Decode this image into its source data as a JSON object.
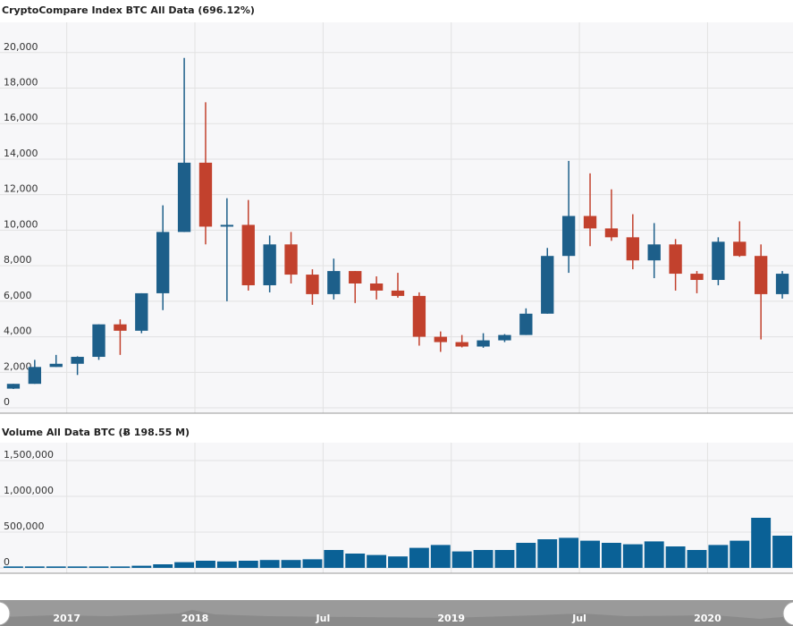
{
  "chart_data": [
    {
      "type": "candlestick",
      "title": "CryptoCompare Index BTC All Data (696.12%)",
      "x": [
        "2017-04",
        "2017-05",
        "2017-06",
        "2017-07",
        "2017-08",
        "2017-09",
        "2017-10",
        "2017-11",
        "2017-12",
        "2018-01",
        "2018-02",
        "2018-03",
        "2018-04",
        "2018-05",
        "2018-06",
        "2018-07",
        "2018-08",
        "2018-09",
        "2018-10",
        "2018-11",
        "2018-12",
        "2019-01",
        "2019-02",
        "2019-03",
        "2019-04",
        "2019-05",
        "2019-06",
        "2019-07",
        "2019-08",
        "2019-09",
        "2019-10",
        "2019-11",
        "2019-12",
        "2020-01",
        "2020-02",
        "2020-03",
        "2020-04"
      ],
      "open": [
        1080,
        1350,
        2300,
        2480,
        2870,
        4700,
        4340,
        6450,
        9900,
        13800,
        10200,
        10300,
        6900,
        9200,
        7500,
        6400,
        7700,
        7000,
        6600,
        6300,
        4000,
        3700,
        3450,
        3800,
        4100,
        5300,
        8550,
        10800,
        10100,
        9600,
        8300,
        9200,
        7550,
        7200,
        9350,
        8550,
        6400
      ],
      "high": [
        1350,
        2700,
        2980,
        2900,
        4700,
        4980,
        6450,
        11400,
        19700,
        17200,
        11800,
        11700,
        9700,
        9900,
        7800,
        8400,
        7700,
        7400,
        7600,
        6500,
        4300,
        4100,
        4200,
        4150,
        5600,
        9000,
        13900,
        13200,
        12300,
        10900,
        10400,
        9500,
        7700,
        9600,
        10500,
        9200,
        7700
      ],
      "low": [
        1060,
        1350,
        2300,
        1850,
        2700,
        2980,
        4200,
        5500,
        9900,
        9200,
        6000,
        6600,
        6500,
        7000,
        5800,
        6100,
        5900,
        6100,
        6200,
        3500,
        3150,
        3400,
        3380,
        3700,
        4100,
        5300,
        7600,
        9100,
        9400,
        7800,
        7300,
        6600,
        6450,
        6900,
        8500,
        3850,
        6150
      ],
      "close": [
        1350,
        2300,
        2480,
        2870,
        4700,
        4340,
        6450,
        9900,
        13800,
        10200,
        10300,
        6900,
        9200,
        7500,
        6400,
        7700,
        7000,
        6600,
        6300,
        4000,
        3700,
        3450,
        3800,
        4100,
        5300,
        8550,
        10800,
        10100,
        9600,
        8300,
        9200,
        7550,
        7200,
        9350,
        8550,
        6400,
        7550
      ],
      "up_color": "#1d5f8a",
      "down_color": "#c2412d",
      "xlim": [
        "2017-04",
        "2020-05"
      ],
      "xticks": [
        {
          "value": "2017-07",
          "label": "2017"
        },
        {
          "value": "2018-01",
          "label": "2018"
        },
        {
          "value": "2018-07",
          "label": "Jul"
        },
        {
          "value": "2019-01",
          "label": "2019"
        },
        {
          "value": "2019-07",
          "label": "Jul"
        },
        {
          "value": "2020-01",
          "label": "2020"
        }
      ],
      "ylim": [
        -300,
        21700
      ],
      "yticks": [
        0,
        {
          "value": 2000,
          "label": "2,000"
        },
        {
          "value": 4000,
          "label": "4,000"
        },
        {
          "value": 6000,
          "label": "6,000"
        },
        {
          "value": 8000,
          "label": "8,000"
        },
        {
          "value": 10000,
          "label": "10,000"
        },
        {
          "value": 12000,
          "label": "12,000"
        },
        {
          "value": 14000,
          "label": "14,000"
        },
        {
          "value": 16000,
          "label": "16,000"
        },
        {
          "value": 18000,
          "label": "18,000"
        },
        {
          "value": 20000,
          "label": "20,000"
        }
      ],
      "grid": true
    },
    {
      "type": "bar",
      "title": "Volume All Data BTC (Ƀ 198.55 M)",
      "x": [
        "2017-04",
        "2017-05",
        "2017-06",
        "2017-07",
        "2017-08",
        "2017-09",
        "2017-10",
        "2017-11",
        "2017-12",
        "2018-01",
        "2018-02",
        "2018-03",
        "2018-04",
        "2018-05",
        "2018-06",
        "2018-07",
        "2018-08",
        "2018-09",
        "2018-10",
        "2018-11",
        "2018-12",
        "2019-01",
        "2019-02",
        "2019-03",
        "2019-04",
        "2019-05",
        "2019-06",
        "2019-07",
        "2019-08",
        "2019-09",
        "2019-10",
        "2019-11",
        "2019-12",
        "2020-01",
        "2020-02",
        "2020-03",
        "2020-04"
      ],
      "values": [
        20000,
        20000,
        20000,
        20000,
        20000,
        20000,
        30000,
        50000,
        80000,
        100000,
        90000,
        100000,
        110000,
        110000,
        120000,
        250000,
        200000,
        180000,
        160000,
        280000,
        320000,
        230000,
        250000,
        250000,
        350000,
        400000,
        420000,
        380000,
        350000,
        330000,
        370000,
        300000,
        250000,
        320000,
        380000,
        700000,
        450000
      ],
      "color": "#0a6196",
      "xlim": [
        "2017-04",
        "2020-05"
      ],
      "xticks": [
        {
          "value": "2017-07",
          "label": "2017"
        },
        {
          "value": "2018-01",
          "label": "2018"
        },
        {
          "value": "2018-07",
          "label": "Jul"
        },
        {
          "value": "2019-01",
          "label": "2019"
        },
        {
          "value": "2019-07",
          "label": "Jul"
        },
        {
          "value": "2020-01",
          "label": "2020"
        }
      ],
      "ylim": [
        -75000,
        1750000
      ],
      "yticks": [
        0,
        {
          "value": 500000,
          "label": "500,000"
        },
        {
          "value": 1000000,
          "label": "1,000,000"
        },
        {
          "value": 1500000,
          "label": "1,500,000"
        }
      ],
      "grid": true
    }
  ]
}
